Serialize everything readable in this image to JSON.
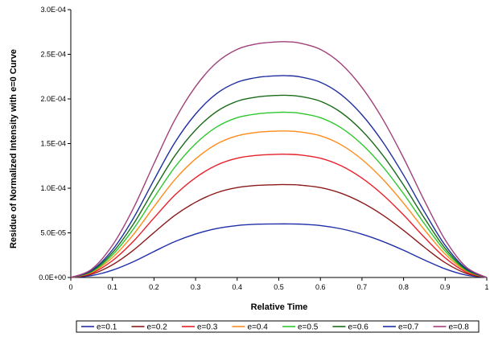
{
  "chart_data": {
    "type": "line",
    "title": "",
    "xlabel": "Relative Time",
    "ylabel": "Residue of Normalized Intensity with e=0 Curve",
    "xlim": [
      0,
      1
    ],
    "ylim": [
      0,
      0.0003
    ],
    "x_ticks": [
      0,
      0.1,
      0.2,
      0.3,
      0.4,
      0.5,
      0.6,
      0.7,
      0.8,
      0.9,
      1
    ],
    "x_tick_labels": [
      "0",
      "0.1",
      "0.2",
      "0.3",
      "0.4",
      "0.5",
      "0.6",
      "0.7",
      "0.8",
      "0.9",
      "1"
    ],
    "y_ticks": [
      0,
      5e-05,
      0.0001,
      0.00015,
      0.0002,
      0.00025,
      0.0003
    ],
    "y_tick_labels": [
      "0.0E+00",
      "5.0E-05",
      "1.0E-04",
      "1.5E-04",
      "2.0E-04",
      "2.5E-04",
      "3.0E-04"
    ],
    "grid": false,
    "legend_position": "bottom",
    "x": [
      0,
      0.05,
      0.1,
      0.15,
      0.2,
      0.25,
      0.3,
      0.35,
      0.4,
      0.45,
      0.5,
      0.52,
      0.55,
      0.6,
      0.65,
      0.7,
      0.75,
      0.8,
      0.85,
      0.9,
      0.95,
      1
    ],
    "series": [
      {
        "name": "e=0.1",
        "color": "#1f2fa8",
        "values": [
          0,
          2.1e-06,
          8.2e-06,
          1.76e-05,
          2.91e-05,
          4.02e-05,
          4.87e-05,
          5.48e-05,
          5.82e-05,
          5.97e-05,
          6e-05,
          6e-05,
          5.98e-05,
          5.82e-05,
          5.45e-05,
          4.85e-05,
          4.04e-05,
          3.05e-05,
          1.96e-05,
          9.6e-06,
          2.7e-06,
          0
        ]
      },
      {
        "name": "e=0.2",
        "color": "#8b1a1a",
        "values": [
          0,
          3.6e-06,
          1.42e-05,
          3.04e-05,
          5.03e-05,
          6.95e-05,
          8.43e-05,
          9.48e-05,
          0.0001007,
          0.0001032,
          0.000104,
          0.000104,
          0.0001035,
          0.0001007,
          9.43e-05,
          8.39e-05,
          6.99e-05,
          5.28e-05,
          3.39e-05,
          1.66e-05,
          4.7e-06,
          0
        ]
      },
      {
        "name": "e=0.3",
        "color": "#e8202a",
        "values": [
          0,
          4.8e-06,
          1.88e-05,
          4.03e-05,
          6.67e-05,
          9.22e-05,
          0.0001118,
          0.0001257,
          0.0001336,
          0.0001369,
          0.000138,
          0.000138,
          0.0001373,
          0.0001336,
          0.0001251,
          0.0001113,
          9.27e-05,
          7e-05,
          4.5e-05,
          2.2e-05,
          6.2e-06,
          0
        ]
      },
      {
        "name": "e=0.4",
        "color": "#ff8c1a",
        "values": [
          0,
          5.7e-06,
          2.23e-05,
          4.78e-05,
          7.93e-05,
          0.0001095,
          0.0001328,
          0.0001493,
          0.0001587,
          0.0001627,
          0.000164,
          0.000164,
          0.0001631,
          0.0001587,
          0.0001486,
          0.0001322,
          0.0001101,
          8.32e-05,
          5.35e-05,
          2.62e-05,
          7.4e-06,
          0
        ]
      },
      {
        "name": "e=0.5",
        "color": "#2ec82e",
        "values": [
          0,
          6.4e-06,
          2.52e-05,
          5.4e-05,
          8.94e-05,
          0.0001235,
          0.0001498,
          0.0001684,
          0.000179,
          0.0001834,
          0.000185,
          0.000185,
          0.000184,
          0.000179,
          0.0001676,
          0.0001491,
          0.0001242,
          9.38e-05,
          6.03e-05,
          2.96e-05,
          8.3e-06,
          0
        ]
      },
      {
        "name": "e=0.6",
        "color": "#1a6b1a",
        "values": [
          0,
          7.1e-06,
          2.78e-05,
          5.95e-05,
          9.86e-05,
          0.0001362,
          0.0001652,
          0.0001857,
          0.0001974,
          0.0002023,
          0.000204,
          0.000204,
          0.0002029,
          0.0001974,
          0.0001848,
          0.0001644,
          0.000137,
          0.0001035,
          6.65e-05,
          3.26e-05,
          9.2e-06,
          0
        ]
      },
      {
        "name": "e=0.7",
        "color": "#1f2f9e",
        "values": [
          0,
          7.9e-06,
          3.08e-05,
          6.6e-05,
          0.0001093,
          0.000151,
          0.0001831,
          0.0002058,
          0.0002187,
          0.0002242,
          0.000226,
          0.000226,
          0.0002248,
          0.0002187,
          0.0002048,
          0.0001822,
          0.0001518,
          0.0001147,
          7.37e-05,
          3.61e-05,
          1.02e-05,
          0
        ]
      },
      {
        "name": "e=0.8",
        "color": "#a0407a",
        "values": [
          0,
          9.2e-06,
          3.6e-05,
          7.71e-05,
          0.0001276,
          0.0001764,
          0.0002139,
          0.0002404,
          0.0002555,
          0.0002619,
          0.000264,
          0.000264,
          0.0002626,
          0.0002555,
          0.0002392,
          0.0002128,
          0.0001773,
          0.0001339,
          8.61e-05,
          4.22e-05,
          1.19e-05,
          0
        ]
      }
    ]
  }
}
